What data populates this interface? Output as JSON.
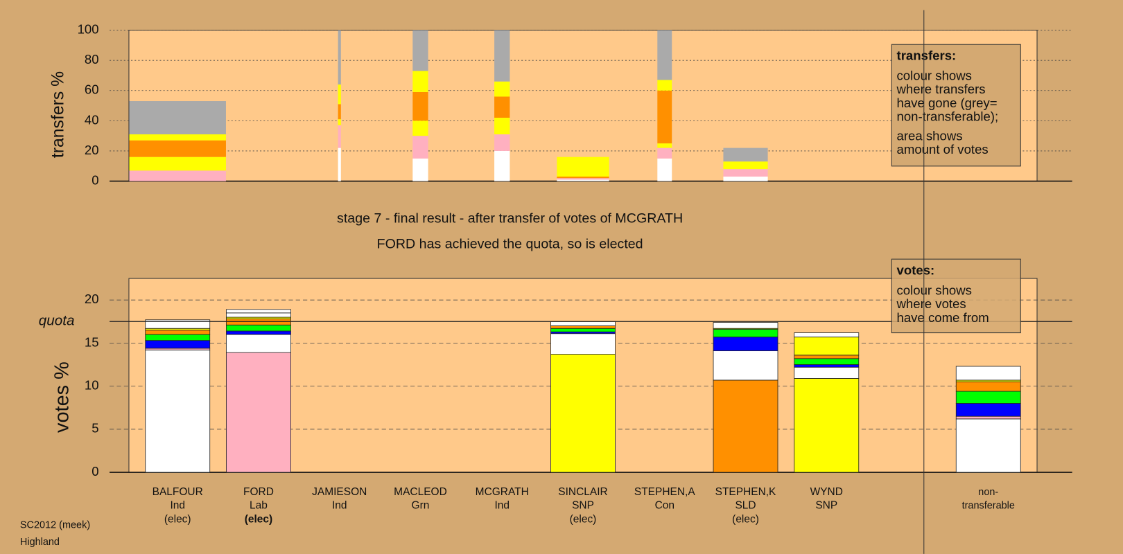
{
  "chart_data": [
    {
      "type": "bar",
      "stacked": true,
      "ylabel": "transfers %",
      "ylim": [
        0,
        100
      ],
      "yticks": [
        0,
        20,
        40,
        60,
        80,
        100
      ],
      "grid": true,
      "bars": [
        {
          "amount": 10,
          "segments": [
            {
              "color": "#ffb0c0",
              "value": 7
            },
            {
              "color": "#ffff00",
              "value": 9
            },
            {
              "color": "#ff9000",
              "value": 11
            },
            {
              "color": "#ffff00",
              "value": 4
            },
            {
              "color": "#aaaaaa",
              "value": 22
            }
          ]
        },
        null,
        {
          "amount": 0.3,
          "segments": [
            {
              "color": "#ffffff",
              "value": 22
            },
            {
              "color": "#ffb0c0",
              "value": 15
            },
            {
              "color": "#ffff00",
              "value": 4
            },
            {
              "color": "#ff9000",
              "value": 10
            },
            {
              "color": "#ffff00",
              "value": 13
            },
            {
              "color": "#aaaaaa",
              "value": 36
            }
          ]
        },
        {
          "amount": 1.6,
          "segments": [
            {
              "color": "#ffffff",
              "value": 15
            },
            {
              "color": "#ffb0c0",
              "value": 15
            },
            {
              "color": "#ffff00",
              "value": 10
            },
            {
              "color": "#ff9000",
              "value": 19
            },
            {
              "color": "#ffff00",
              "value": 14
            },
            {
              "color": "#aaaaaa",
              "value": 27
            }
          ]
        },
        {
          "amount": 1.6,
          "segments": [
            {
              "color": "#ffffff",
              "value": 20
            },
            {
              "color": "#ffb0c0",
              "value": 11
            },
            {
              "color": "#ffff00",
              "value": 11
            },
            {
              "color": "#ff9000",
              "value": 14
            },
            {
              "color": "#ffff00",
              "value": 10
            },
            {
              "color": "#aaaaaa",
              "value": 34
            }
          ]
        },
        {
          "amount": 5.4,
          "segments": [
            {
              "color": "#ffffff",
              "value": 1
            },
            {
              "color": "#ffb0c0",
              "value": 1
            },
            {
              "color": "#ff9000",
              "value": 1
            },
            {
              "color": "#ffff00",
              "value": 13
            }
          ]
        },
        {
          "amount": 1.5,
          "segments": [
            {
              "color": "#ffffff",
              "value": 15
            },
            {
              "color": "#ffb0c0",
              "value": 7
            },
            {
              "color": "#ffff00",
              "value": 3
            },
            {
              "color": "#ff9000",
              "value": 35
            },
            {
              "color": "#ffff00",
              "value": 7
            },
            {
              "color": "#aaaaaa",
              "value": 33
            }
          ]
        },
        {
          "amount": 4.6,
          "segments": [
            {
              "color": "#ffffff",
              "value": 3
            },
            {
              "color": "#ffb0c0",
              "value": 5
            },
            {
              "color": "#ffff00",
              "value": 5
            },
            {
              "color": "#aaaaaa",
              "value": 9
            }
          ]
        },
        null,
        null
      ],
      "legend_title": "transfers:",
      "legend_lines": [
        "colour shows",
        "where transfers",
        "have gone (grey=",
        "non-transferable);",
        "area shows",
        "amount of votes"
      ]
    },
    {
      "type": "bar",
      "stacked": true,
      "title": "stage 7 - final result - after transfer of votes of MCGRATH",
      "subtitle": "FORD has achieved the quota, so is elected",
      "ylabel": "votes %",
      "ylim": [
        0,
        22.5
      ],
      "yticks": [
        0,
        5,
        10,
        15,
        20
      ],
      "grid": true,
      "quota": 17.5,
      "quota_label": "quota",
      "highlight": 1,
      "categories": [
        [
          "BALFOUR",
          "Ind",
          "(elec)"
        ],
        [
          "FORD",
          "Lab",
          "(elec)"
        ],
        [
          "JAMIESON",
          "Ind"
        ],
        [
          "MACLEOD",
          "Grn"
        ],
        [
          "MCGRATH",
          "Ind"
        ],
        [
          "SINCLAIR",
          "SNP",
          "(elec)"
        ],
        [
          "STEPHEN,A",
          "Con"
        ],
        [
          "STEPHEN,K",
          "SLD",
          "(elec)"
        ],
        [
          "WYND",
          "SNP"
        ],
        [
          "non-",
          "transferable"
        ]
      ],
      "bars": [
        [
          {
            "color": "#ffffff",
            "value": 14.2
          },
          {
            "color": "#ffb0c0",
            "value": 0.2
          },
          {
            "color": "#0000ff",
            "value": 0.9
          },
          {
            "color": "#00ff00",
            "value": 0.7
          },
          {
            "color": "#ff9000",
            "value": 0.5
          },
          {
            "color": "#ffff00",
            "value": 0.2
          },
          {
            "color": "#ffffff",
            "value": 1.0
          }
        ],
        [
          {
            "color": "#ffb0c0",
            "value": 13.9
          },
          {
            "color": "#ffffff",
            "value": 2.1
          },
          {
            "color": "#0000ff",
            "value": 0.4
          },
          {
            "color": "#00ff00",
            "value": 0.7
          },
          {
            "color": "#ff9000",
            "value": 0.7
          },
          {
            "color": "#ffff00",
            "value": 0.2
          },
          {
            "color": "#ffffff",
            "value": 0.5
          },
          {
            "color": "#ffffff",
            "value": 0.4
          }
        ],
        [],
        [],
        [],
        [
          {
            "color": "#ffff00",
            "value": 13.7
          },
          {
            "color": "#ffffff",
            "value": 2.4
          },
          {
            "color": "#0000ff",
            "value": 0.2
          },
          {
            "color": "#00ff00",
            "value": 0.4
          },
          {
            "color": "#ff9000",
            "value": 0.3
          },
          {
            "color": "#ffffff",
            "value": 0.5
          }
        ],
        [],
        [
          {
            "color": "#ff9000",
            "value": 10.7
          },
          {
            "color": "#ffffff",
            "value": 3.4
          },
          {
            "color": "#0000ff",
            "value": 1.6
          },
          {
            "color": "#00ff00",
            "value": 0.9
          },
          {
            "color": "#ffff00",
            "value": 0.1
          },
          {
            "color": "#ffffff",
            "value": 0.7
          }
        ],
        [
          {
            "color": "#ffff00",
            "value": 10.9
          },
          {
            "color": "#ffffff",
            "value": 1.3
          },
          {
            "color": "#0000ff",
            "value": 0.3
          },
          {
            "color": "#00ff00",
            "value": 0.7
          },
          {
            "color": "#ff9000",
            "value": 0.4
          },
          {
            "color": "#ffff00",
            "value": 2.1
          },
          {
            "color": "#ffffff",
            "value": 0.5
          }
        ],
        [
          {
            "color": "#ffffff",
            "value": 6.2
          },
          {
            "color": "#ffb0c0",
            "value": 0.3
          },
          {
            "color": "#0000ff",
            "value": 1.5
          },
          {
            "color": "#00ff00",
            "value": 1.4
          },
          {
            "color": "#ff9000",
            "value": 1.1
          },
          {
            "color": "#ffff00",
            "value": 0.2
          },
          {
            "color": "#ffffff",
            "value": 1.6
          }
        ]
      ],
      "legend_title": "votes:",
      "legend_lines": [
        "colour shows",
        "where votes",
        "have come from"
      ]
    }
  ],
  "footer": [
    "SC2012 (meek)",
    "Highland"
  ]
}
